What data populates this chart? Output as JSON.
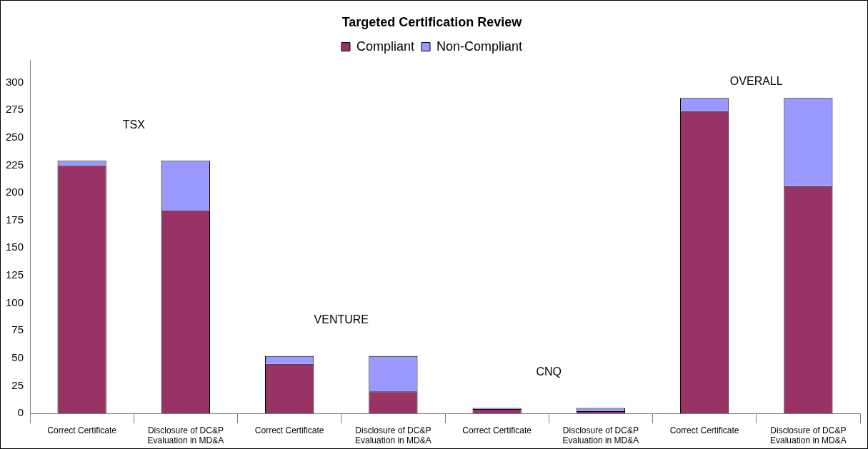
{
  "chart_data": {
    "type": "bar",
    "title": "Targeted Certification Review",
    "categories": [
      "Correct Certificate",
      "Disclosure of DC&P Evaluation in MD&A",
      "Correct Certificate",
      "Disclosure of DC&P Evaluation in MD&A",
      "Correct Certificate",
      "Disclosure of DC&P Evaluation in MD&A",
      "Correct Certificate",
      "Disclosure of DC&P Evaluation in MD&A"
    ],
    "series": [
      {
        "name": "Compliant",
        "color": "#993366",
        "values": [
          225,
          184,
          45,
          20,
          4,
          2,
          274,
          206
        ]
      },
      {
        "name": "Non-Compliant",
        "color": "#9999ff",
        "values": [
          4,
          45,
          7,
          32,
          1,
          3,
          12,
          80
        ]
      }
    ],
    "stacked": true,
    "ylim": [
      0,
      320
    ],
    "yticks": [
      0,
      25,
      50,
      75,
      100,
      125,
      150,
      175,
      200,
      225,
      250,
      275,
      300
    ],
    "grid": false,
    "legend": "top",
    "annotations": [
      "TSX",
      "VENTURE",
      "CNQ",
      "OVERALL"
    ]
  }
}
